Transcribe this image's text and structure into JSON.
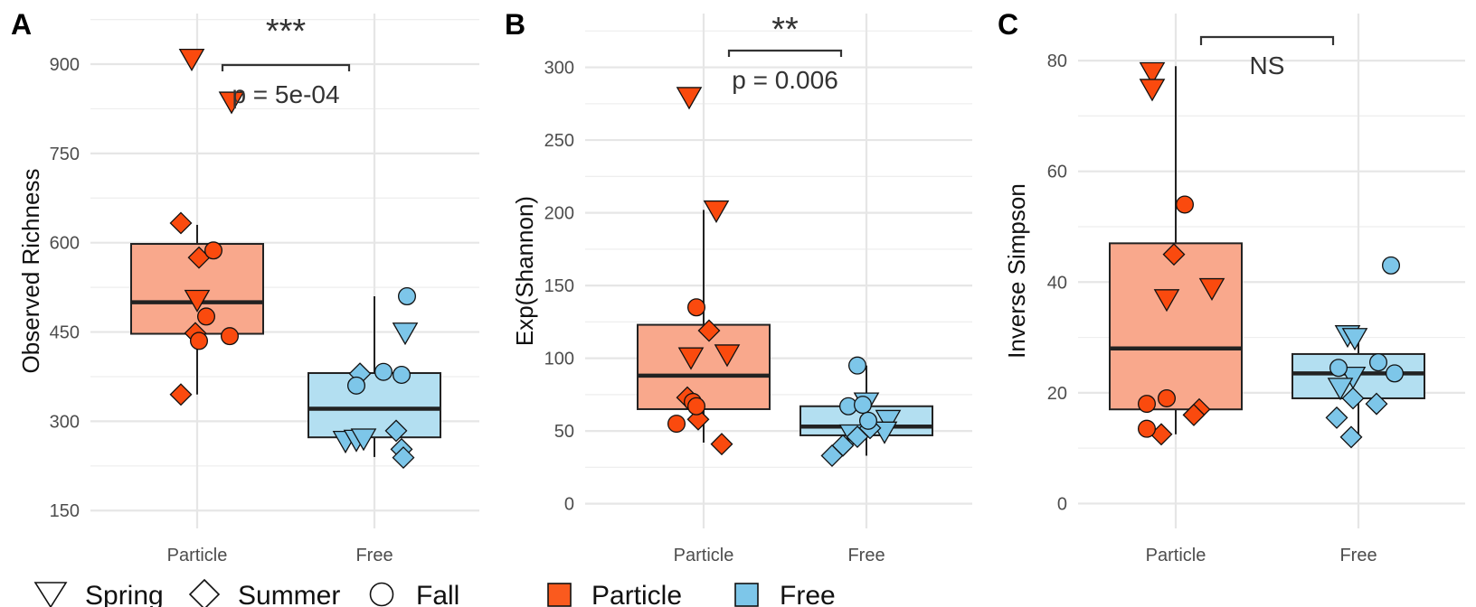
{
  "legend_seasons": {
    "items": [
      {
        "label": "Spring",
        "shape": "triangle"
      },
      {
        "label": "Summer",
        "shape": "diamond"
      },
      {
        "label": "Fall",
        "shape": "circle"
      }
    ]
  },
  "legend_fractions": {
    "items": [
      {
        "label": "Particle",
        "color": "#fa5a1e"
      },
      {
        "label": "Free",
        "color": "#7dc6e9"
      }
    ]
  },
  "colors": {
    "particle_point": "#fa4a0e",
    "free_point": "#7dc6e9",
    "particle_box": "#f9a88c",
    "free_box": "#b3dff1",
    "grid": "#e6e6e6",
    "ink": "#222222"
  },
  "chart_data": [
    {
      "panel_letter": "A",
      "type": "box",
      "categories": [
        "Particle",
        "Free"
      ],
      "ylabel": "Observed Richness",
      "ylim": [
        120,
        985
      ],
      "yticks": [
        150,
        300,
        450,
        600,
        750,
        900
      ],
      "grid": true,
      "significance": {
        "stars": "***",
        "pvalue": "p = 5e-04"
      },
      "boxes": [
        {
          "category": "Particle",
          "q1": 447,
          "median": 500,
          "q3": 598,
          "whisker_low": 345,
          "whisker_high": 630
        },
        {
          "category": "Free",
          "q1": 273,
          "median": 321,
          "q3": 381,
          "whisker_low": 240,
          "whisker_high": 510
        }
      ],
      "points": [
        {
          "category": "Particle",
          "season": "Spring",
          "x_offset": -0.03,
          "y": 910
        },
        {
          "category": "Particle",
          "season": "Spring",
          "x_offset": 0.19,
          "y": 838
        },
        {
          "category": "Particle",
          "season": "Spring",
          "x_offset": 0.0,
          "y": 505
        },
        {
          "category": "Particle",
          "season": "Summer",
          "x_offset": -0.09,
          "y": 633
        },
        {
          "category": "Particle",
          "season": "Summer",
          "x_offset": 0.01,
          "y": 575
        },
        {
          "category": "Particle",
          "season": "Summer",
          "x_offset": -0.01,
          "y": 448
        },
        {
          "category": "Particle",
          "season": "Summer",
          "x_offset": -0.09,
          "y": 345
        },
        {
          "category": "Particle",
          "season": "Fall",
          "x_offset": 0.09,
          "y": 587
        },
        {
          "category": "Particle",
          "season": "Fall",
          "x_offset": 0.05,
          "y": 476
        },
        {
          "category": "Particle",
          "season": "Fall",
          "x_offset": 0.01,
          "y": 435
        },
        {
          "category": "Particle",
          "season": "Fall",
          "x_offset": 0.18,
          "y": 443
        },
        {
          "category": "Free",
          "season": "Spring",
          "x_offset": 0.17,
          "y": 450
        },
        {
          "category": "Free",
          "season": "Spring",
          "x_offset": -0.16,
          "y": 268
        },
        {
          "category": "Free",
          "season": "Spring",
          "x_offset": -0.1,
          "y": 270
        },
        {
          "category": "Free",
          "season": "Spring",
          "x_offset": -0.06,
          "y": 272
        },
        {
          "category": "Free",
          "season": "Summer",
          "x_offset": -0.08,
          "y": 380
        },
        {
          "category": "Free",
          "season": "Summer",
          "x_offset": 0.12,
          "y": 284
        },
        {
          "category": "Free",
          "season": "Summer",
          "x_offset": 0.15,
          "y": 253
        },
        {
          "category": "Free",
          "season": "Summer",
          "x_offset": 0.16,
          "y": 239
        },
        {
          "category": "Free",
          "season": "Fall",
          "x_offset": 0.18,
          "y": 510
        },
        {
          "category": "Free",
          "season": "Fall",
          "x_offset": 0.05,
          "y": 383
        },
        {
          "category": "Free",
          "season": "Fall",
          "x_offset": 0.15,
          "y": 378
        },
        {
          "category": "Free",
          "season": "Fall",
          "x_offset": -0.1,
          "y": 360
        }
      ]
    },
    {
      "panel_letter": "B",
      "type": "box",
      "categories": [
        "Particle",
        "Free"
      ],
      "ylabel": "Exp(Shannon)",
      "ylim": [
        -17,
        337
      ],
      "yticks": [
        0,
        50,
        100,
        150,
        200,
        250,
        300
      ],
      "grid": true,
      "significance": {
        "stars": "**",
        "pvalue": "p = 0.006"
      },
      "boxes": [
        {
          "category": "Particle",
          "q1": 65,
          "median": 88,
          "q3": 123,
          "whisker_low": 42,
          "whisker_high": 202
        },
        {
          "category": "Free",
          "q1": 47,
          "median": 53,
          "q3": 67,
          "whisker_low": 33,
          "whisker_high": 95
        }
      ],
      "points": [
        {
          "category": "Particle",
          "season": "Spring",
          "x_offset": -0.08,
          "y": 280
        },
        {
          "category": "Particle",
          "season": "Spring",
          "x_offset": 0.07,
          "y": 202
        },
        {
          "category": "Particle",
          "season": "Spring",
          "x_offset": -0.07,
          "y": 101
        },
        {
          "category": "Particle",
          "season": "Spring",
          "x_offset": 0.13,
          "y": 103
        },
        {
          "category": "Particle",
          "season": "Summer",
          "x_offset": 0.03,
          "y": 119
        },
        {
          "category": "Particle",
          "season": "Summer",
          "x_offset": -0.09,
          "y": 73
        },
        {
          "category": "Particle",
          "season": "Summer",
          "x_offset": -0.03,
          "y": 58
        },
        {
          "category": "Particle",
          "season": "Summer",
          "x_offset": 0.1,
          "y": 41
        },
        {
          "category": "Particle",
          "season": "Fall",
          "x_offset": -0.04,
          "y": 135
        },
        {
          "category": "Particle",
          "season": "Fall",
          "x_offset": -0.06,
          "y": 70
        },
        {
          "category": "Particle",
          "season": "Fall",
          "x_offset": -0.04,
          "y": 67
        },
        {
          "category": "Particle",
          "season": "Fall",
          "x_offset": -0.15,
          "y": 55
        },
        {
          "category": "Free",
          "season": "Spring",
          "x_offset": 0.0,
          "y": 70
        },
        {
          "category": "Free",
          "season": "Spring",
          "x_offset": 0.12,
          "y": 58
        },
        {
          "category": "Free",
          "season": "Spring",
          "x_offset": -0.08,
          "y": 48
        },
        {
          "category": "Free",
          "season": "Spring",
          "x_offset": 0.1,
          "y": 50
        },
        {
          "category": "Free",
          "season": "Summer",
          "x_offset": -0.13,
          "y": 40
        },
        {
          "category": "Free",
          "season": "Summer",
          "x_offset": -0.19,
          "y": 33
        },
        {
          "category": "Free",
          "season": "Summer",
          "x_offset": -0.05,
          "y": 46
        },
        {
          "category": "Free",
          "season": "Summer",
          "x_offset": 0.02,
          "y": 52
        },
        {
          "category": "Free",
          "season": "Fall",
          "x_offset": -0.05,
          "y": 95
        },
        {
          "category": "Free",
          "season": "Fall",
          "x_offset": -0.1,
          "y": 67
        },
        {
          "category": "Free",
          "season": "Fall",
          "x_offset": -0.02,
          "y": 68
        },
        {
          "category": "Free",
          "season": "Fall",
          "x_offset": 0.01,
          "y": 57
        }
      ]
    },
    {
      "panel_letter": "C",
      "type": "box",
      "categories": [
        "Particle",
        "Free"
      ],
      "ylabel": "Inverse Simpson",
      "ylim": [
        -4.5,
        88.5
      ],
      "yticks": [
        0,
        20,
        40,
        60,
        80
      ],
      "grid": true,
      "significance": {
        "stars": "",
        "pvalue": "NS"
      },
      "boxes": [
        {
          "category": "Particle",
          "q1": 17,
          "median": 28,
          "q3": 47,
          "whisker_low": 12.5,
          "whisker_high": 79
        },
        {
          "category": "Free",
          "q1": 19,
          "median": 23.5,
          "q3": 27,
          "whisker_low": 12,
          "whisker_high": 31
        }
      ],
      "points": [
        {
          "category": "Particle",
          "season": "Spring",
          "x_offset": -0.13,
          "y": 78
        },
        {
          "category": "Particle",
          "season": "Spring",
          "x_offset": -0.13,
          "y": 75
        },
        {
          "category": "Particle",
          "season": "Spring",
          "x_offset": -0.05,
          "y": 37
        },
        {
          "category": "Particle",
          "season": "Spring",
          "x_offset": 0.2,
          "y": 39
        },
        {
          "category": "Particle",
          "season": "Summer",
          "x_offset": -0.01,
          "y": 45
        },
        {
          "category": "Particle",
          "season": "Summer",
          "x_offset": 0.13,
          "y": 17
        },
        {
          "category": "Particle",
          "season": "Summer",
          "x_offset": 0.1,
          "y": 16
        },
        {
          "category": "Particle",
          "season": "Summer",
          "x_offset": -0.08,
          "y": 12.5
        },
        {
          "category": "Particle",
          "season": "Fall",
          "x_offset": 0.05,
          "y": 54
        },
        {
          "category": "Particle",
          "season": "Fall",
          "x_offset": -0.05,
          "y": 19
        },
        {
          "category": "Particle",
          "season": "Fall",
          "x_offset": -0.16,
          "y": 18
        },
        {
          "category": "Particle",
          "season": "Fall",
          "x_offset": -0.16,
          "y": 13.5
        },
        {
          "category": "Free",
          "season": "Spring",
          "x_offset": -0.06,
          "y": 30.5
        },
        {
          "category": "Free",
          "season": "Spring",
          "x_offset": -0.02,
          "y": 30
        },
        {
          "category": "Free",
          "season": "Spring",
          "x_offset": -0.03,
          "y": 23
        },
        {
          "category": "Free",
          "season": "Spring",
          "x_offset": -0.1,
          "y": 21
        },
        {
          "category": "Free",
          "season": "Summer",
          "x_offset": -0.03,
          "y": 19
        },
        {
          "category": "Free",
          "season": "Summer",
          "x_offset": -0.12,
          "y": 15.5
        },
        {
          "category": "Free",
          "season": "Summer",
          "x_offset": -0.04,
          "y": 12
        },
        {
          "category": "Free",
          "season": "Summer",
          "x_offset": 0.1,
          "y": 18
        },
        {
          "category": "Free",
          "season": "Fall",
          "x_offset": 0.18,
          "y": 43
        },
        {
          "category": "Free",
          "season": "Fall",
          "x_offset": 0.11,
          "y": 25.5
        },
        {
          "category": "Free",
          "season": "Fall",
          "x_offset": 0.2,
          "y": 23.5
        },
        {
          "category": "Free",
          "season": "Fall",
          "x_offset": -0.11,
          "y": 24.5
        }
      ]
    }
  ]
}
